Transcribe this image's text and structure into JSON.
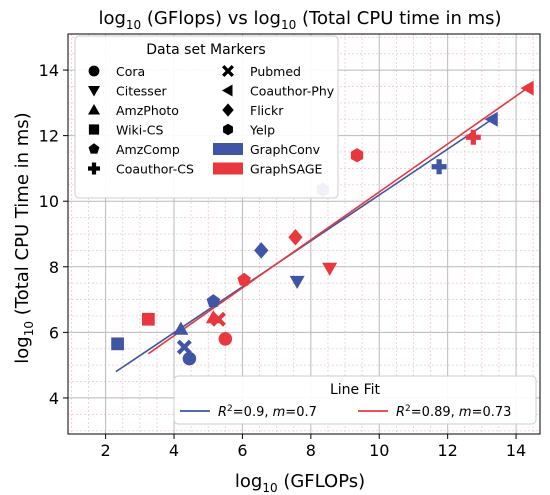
{
  "chart_data": {
    "type": "scatter",
    "title_main": "log",
    "title_sub1": "10",
    "title_mid": " (GFlops) vs log",
    "title_sub2": "10",
    "title_end": " (Total CPU time in ms)",
    "xlabel_main": "log",
    "xlabel_sub": "10",
    "xlabel_end": " (GFLOPs)",
    "ylabel_main": "log",
    "ylabel_sub": "10",
    "ylabel_end": " (Total CPU Time in ms)",
    "xlim": [
      0.9,
      14.7
    ],
    "ylim": [
      2.9,
      15.1
    ],
    "xticks": [
      2,
      4,
      6,
      8,
      10,
      12,
      14
    ],
    "yticks": [
      4,
      6,
      8,
      10,
      12,
      14
    ],
    "xtick_labels": [
      "2",
      "4",
      "6",
      "8",
      "10",
      "12",
      "14"
    ],
    "ytick_labels": [
      "4",
      "6",
      "8",
      "10",
      "12",
      "14"
    ],
    "grid": true,
    "colors": {
      "GraphConv": "#3f55a5",
      "GraphSAGE": "#e8383d"
    },
    "markers_legend": {
      "title": "Data set Markers",
      "placement": "top-left",
      "items": [
        {
          "name": "Cora",
          "marker": "circle"
        },
        {
          "name": "Citesser",
          "marker": "triangle-down"
        },
        {
          "name": "AmzPhoto",
          "marker": "triangle-up"
        },
        {
          "name": "Wiki-CS",
          "marker": "square"
        },
        {
          "name": "AmzComp",
          "marker": "pentagon"
        },
        {
          "name": "Coauthor-CS",
          "marker": "plus"
        },
        {
          "name": "Pubmed",
          "marker": "x"
        },
        {
          "name": "Coauthor-Phy",
          "marker": "triangle-left"
        },
        {
          "name": "Flickr",
          "marker": "diamond"
        },
        {
          "name": "Yelp",
          "marker": "hexagon"
        },
        {
          "name": "GraphConv",
          "marker": "patch",
          "series": "GraphConv"
        },
        {
          "name": "GraphSAGE",
          "marker": "patch",
          "series": "GraphSAGE"
        }
      ]
    },
    "fit_legend": {
      "title": "Line Fit",
      "placement": "bottom-right",
      "entries": [
        {
          "series": "GraphConv",
          "r2": "0.9",
          "m": "0.7"
        },
        {
          "series": "GraphSAGE",
          "r2": "0.89",
          "m": "0.73"
        }
      ]
    },
    "fit_lines": [
      {
        "series": "GraphConv",
        "x": [
          2.3,
          13.3
        ],
        "y": [
          4.8,
          12.5
        ]
      },
      {
        "series": "GraphSAGE",
        "x": [
          3.25,
          14.4
        ],
        "y": [
          5.35,
          13.5
        ]
      }
    ],
    "points": [
      {
        "dataset": "Cora",
        "series": "GraphConv",
        "marker": "circle",
        "x": 4.45,
        "y": 5.2
      },
      {
        "dataset": "Cora",
        "series": "GraphSAGE",
        "marker": "circle",
        "x": 5.5,
        "y": 5.8
      },
      {
        "dataset": "Citesser",
        "series": "GraphConv",
        "marker": "triangle-down",
        "x": 7.6,
        "y": 7.55
      },
      {
        "dataset": "Citesser",
        "series": "GraphSAGE",
        "marker": "triangle-down",
        "x": 8.55,
        "y": 7.95
      },
      {
        "dataset": "AmzPhoto",
        "series": "GraphConv",
        "marker": "triangle-up",
        "x": 4.2,
        "y": 6.1
      },
      {
        "dataset": "AmzPhoto",
        "series": "GraphSAGE",
        "marker": "triangle-up",
        "x": 5.15,
        "y": 6.45
      },
      {
        "dataset": "Wiki-CS",
        "series": "GraphConv",
        "marker": "square",
        "x": 2.35,
        "y": 5.65
      },
      {
        "dataset": "Wiki-CS",
        "series": "GraphSAGE",
        "marker": "square",
        "x": 3.25,
        "y": 6.4
      },
      {
        "dataset": "AmzComp",
        "series": "GraphConv",
        "marker": "pentagon",
        "x": 5.15,
        "y": 6.95
      },
      {
        "dataset": "AmzComp",
        "series": "GraphSAGE",
        "marker": "pentagon",
        "x": 6.05,
        "y": 7.6
      },
      {
        "dataset": "Coauthor-CS",
        "series": "GraphConv",
        "marker": "plus",
        "x": 11.75,
        "y": 11.05
      },
      {
        "dataset": "Coauthor-CS",
        "series": "GraphSAGE",
        "marker": "plus",
        "x": 12.75,
        "y": 11.95
      },
      {
        "dataset": "Pubmed",
        "series": "GraphConv",
        "marker": "x",
        "x": 4.3,
        "y": 5.55
      },
      {
        "dataset": "Pubmed",
        "series": "GraphSAGE",
        "marker": "x",
        "x": 5.3,
        "y": 6.4
      },
      {
        "dataset": "Coauthor-Phy",
        "series": "GraphConv",
        "marker": "triangle-left",
        "x": 13.3,
        "y": 12.5
      },
      {
        "dataset": "Coauthor-Phy",
        "series": "GraphSAGE",
        "marker": "triangle-left",
        "x": 14.35,
        "y": 13.45
      },
      {
        "dataset": "Flickr",
        "series": "GraphConv",
        "marker": "diamond",
        "x": 6.55,
        "y": 8.5
      },
      {
        "dataset": "Flickr",
        "series": "GraphSAGE",
        "marker": "diamond",
        "x": 7.55,
        "y": 8.9
      },
      {
        "dataset": "Yelp",
        "series": "GraphConv",
        "marker": "hexagon",
        "x": 8.35,
        "y": 10.35
      },
      {
        "dataset": "Yelp",
        "series": "GraphSAGE",
        "marker": "hexagon",
        "x": 9.35,
        "y": 11.4
      }
    ]
  }
}
